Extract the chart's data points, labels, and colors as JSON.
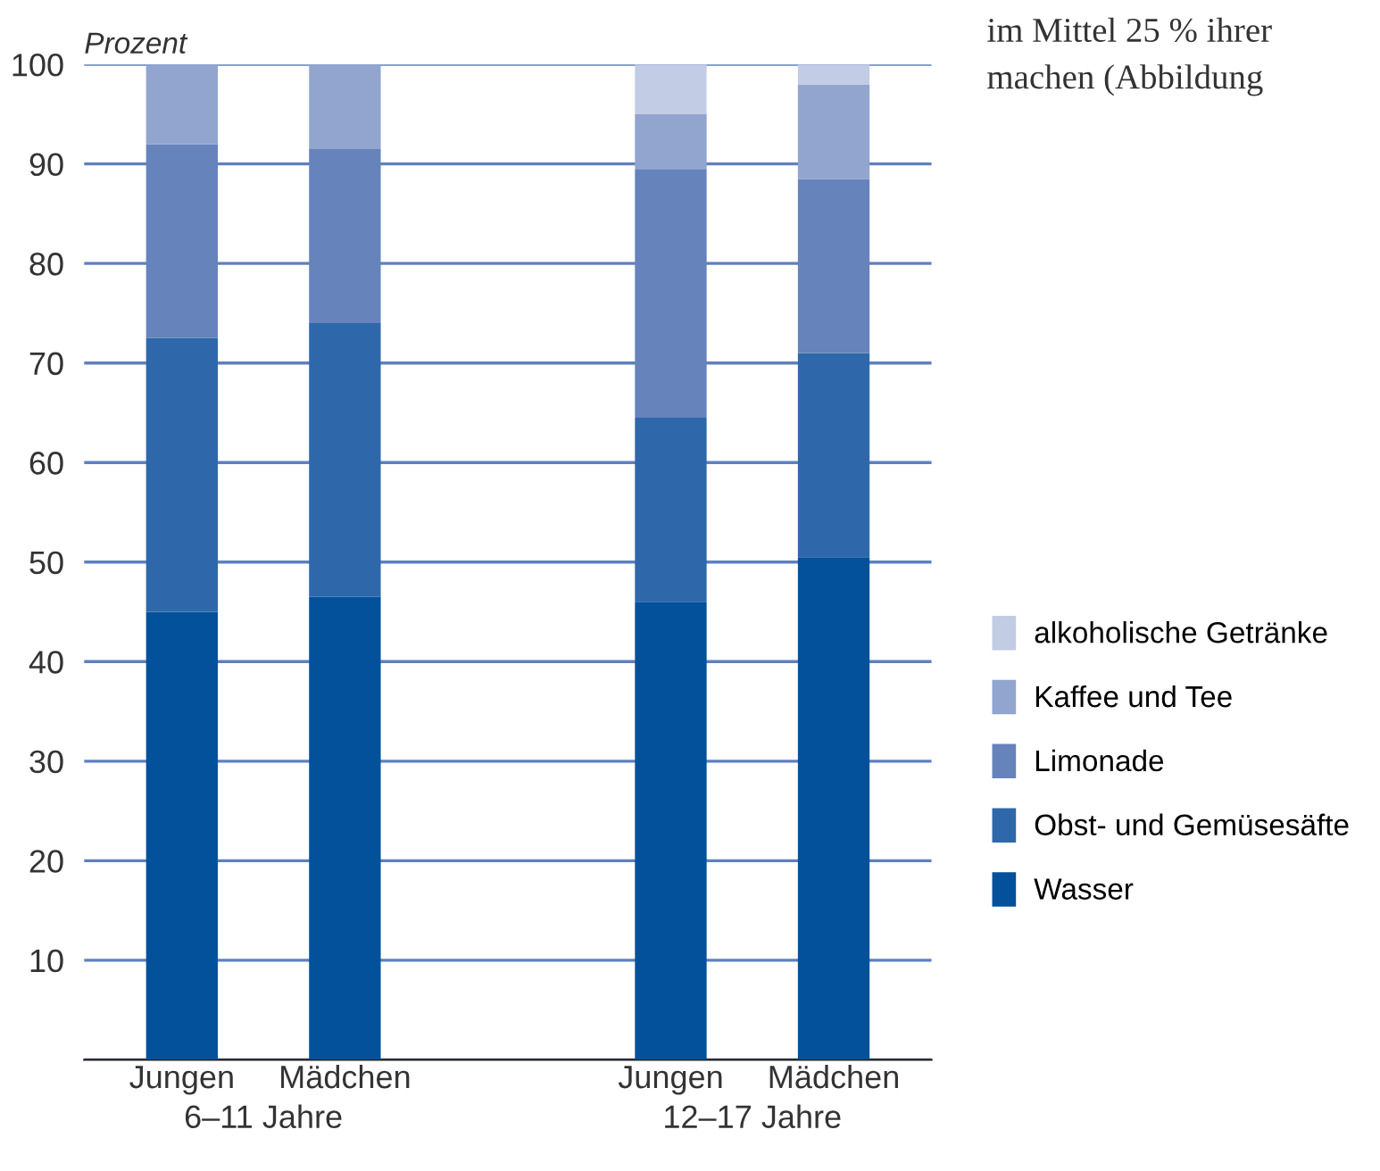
{
  "chart_data": {
    "type": "bar",
    "stacked": true,
    "ylabel": "Prozent",
    "categories": [
      "Jungen",
      "Mädchen",
      null,
      "Jungen",
      "Mädchen"
    ],
    "series": [
      {
        "name": "Wasser",
        "color": "#03519b",
        "values": [
          45,
          46.5,
          null,
          46,
          50.5
        ]
      },
      {
        "name": "Obst- und Gemüsesäfte",
        "color": "#2e68ab",
        "values": [
          27.5,
          27.5,
          null,
          18.5,
          20.5
        ]
      },
      {
        "name": "Limonade",
        "color": "#6683bb",
        "values": [
          19.5,
          17.5,
          null,
          25,
          17.5
        ]
      },
      {
        "name": "Kaffee und Tee",
        "color": "#91a5cf",
        "values": [
          8,
          8.5,
          null,
          5.5,
          9.5
        ]
      },
      {
        "name": "alkoholische Getränke",
        "color": "#c3cce5",
        "values": [
          0,
          0,
          null,
          5,
          2
        ]
      }
    ],
    "ylim": [
      0,
      100
    ],
    "yticks": [
      {
        "value": 0,
        "label": null
      },
      10,
      20,
      30,
      40,
      50,
      60,
      70,
      80,
      90,
      100
    ],
    "grid": "y",
    "legend": "right",
    "annotations": [
      "6–11 Jahre",
      "12–17 Jahre",
      "im Mittel 25 % ihrer",
      "machen (Abbildung"
    ]
  }
}
